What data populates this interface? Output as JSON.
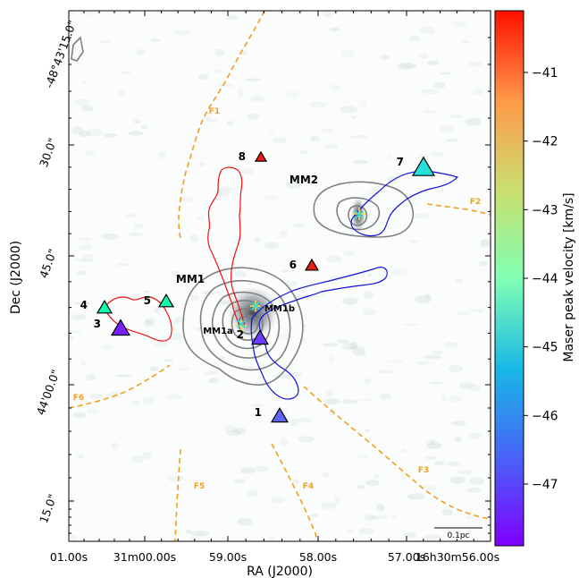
{
  "chart_data": {
    "type": "scatter",
    "xlabel": "RA (J2000)",
    "ylabel": "Dec (J2000)",
    "x_ticks": [
      "01.00s",
      "31m00.00s",
      "59.00s",
      "58.00s",
      "57.00s",
      "16h30m56.00s"
    ],
    "y_ticks": [
      "-48°43'15.0\"",
      "30.0\"",
      "45.0\"",
      "44'00.0\"",
      "15.0\""
    ],
    "colorbar": {
      "label": "Maser peak velocity [km/s]",
      "range": [
        -47.9,
        -40.1
      ],
      "ticks": [
        -41,
        -42,
        -43,
        -44,
        -45,
        -46,
        -47
      ],
      "tick_labels": [
        "−41",
        "−42",
        "−43",
        "−44",
        "−45",
        "−46",
        "−47"
      ],
      "colormap": "rainbow"
    },
    "cores": [
      {
        "label": "MM1"
      },
      {
        "label": "MM2"
      },
      {
        "label": "MM1a"
      },
      {
        "label": "MM1b"
      }
    ],
    "filaments": [
      "F1",
      "F2",
      "F3",
      "F4",
      "F5",
      "F6"
    ],
    "masers": [
      {
        "id": "1",
        "velocity": -46.9
      },
      {
        "id": "2",
        "velocity": -47.3
      },
      {
        "id": "3",
        "velocity": -47.6
      },
      {
        "id": "4",
        "velocity": -43.8
      },
      {
        "id": "5",
        "velocity": -43.8
      },
      {
        "id": "6",
        "velocity": -40.4
      },
      {
        "id": "7",
        "velocity": -45.2
      },
      {
        "id": "8",
        "velocity": -40.4
      }
    ],
    "scale_bar": "0.1pc"
  }
}
